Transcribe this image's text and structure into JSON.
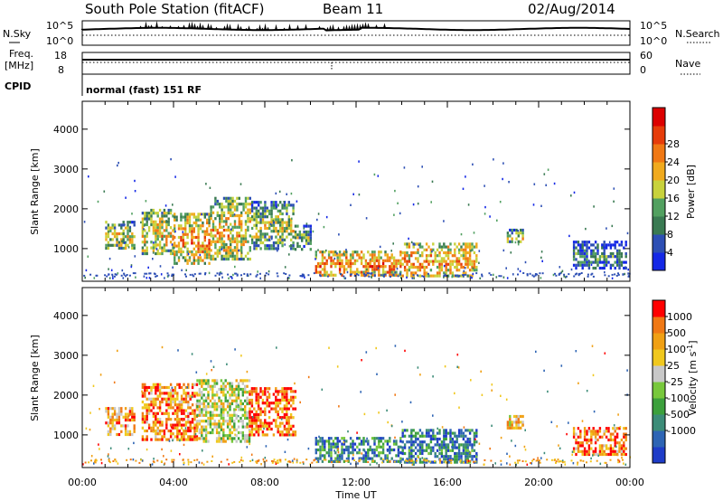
{
  "header": {
    "station": "South Pole Station (fitACF)",
    "beam": "Beam 11",
    "date": "02/Aug/2014"
  },
  "top_panel": {
    "nsky_label": "N.Sky",
    "nsearch_label": "N.Search",
    "noise_tick_hi": "10^5",
    "noise_tick_lo": "10^0",
    "freq_label_1": "Freq.",
    "freq_label_2": "[MHz]",
    "freq_tick_hi": "18",
    "freq_tick_lo": "8",
    "nave_label": "Nave",
    "nave_tick_hi": "60",
    "nave_tick_lo": "0",
    "cpid_label": "CPID",
    "cpid_value": "normal (fast) 151 RF"
  },
  "chart_data": [
    {
      "type": "heatmap",
      "name": "power",
      "xlabel": "Time UT",
      "ylabel": "Slant Range [km]",
      "x_ticks": [
        "00:00",
        "04:00",
        "08:00",
        "12:00",
        "16:00",
        "20:00",
        "00:00"
      ],
      "y_ticks": [
        1000,
        2000,
        3000,
        4000
      ],
      "xlim_hours": [
        0,
        24
      ],
      "ylim_km": [
        180,
        4700
      ],
      "colorbar": {
        "label": "Power [dB]",
        "ticks": [
          "4",
          "8",
          "12",
          "16",
          "20",
          "24",
          "28"
        ],
        "colors": [
          "#1428e6",
          "#2d4fb4",
          "#3a7a52",
          "#52a060",
          "#c8d23c",
          "#f0aa1e",
          "#f07814",
          "#e63c0a",
          "#dc0000"
        ]
      },
      "regions": [
        {
          "t0": 1.0,
          "t1": 2.3,
          "r0": 1000,
          "r1": 1700,
          "level": 0.55
        },
        {
          "t0": 2.6,
          "t1": 4.0,
          "r0": 900,
          "r1": 2000,
          "level": 0.6
        },
        {
          "t0": 4.0,
          "t1": 5.6,
          "r0": 650,
          "r1": 1900,
          "level": 0.7
        },
        {
          "t0": 5.6,
          "t1": 7.4,
          "r0": 750,
          "r1": 2300,
          "level": 0.6
        },
        {
          "t0": 7.4,
          "t1": 9.3,
          "r0": 1000,
          "r1": 2200,
          "level": 0.5
        },
        {
          "t0": 9.3,
          "t1": 10.0,
          "r0": 1000,
          "r1": 1600,
          "level": 0.45
        },
        {
          "t0": 10.2,
          "t1": 14.0,
          "r0": 300,
          "r1": 950,
          "level": 0.75
        },
        {
          "t0": 14.0,
          "t1": 17.3,
          "r0": 300,
          "r1": 1150,
          "level": 0.7
        },
        {
          "t0": 18.6,
          "t1": 19.3,
          "r0": 1150,
          "r1": 1500,
          "level": 0.5
        },
        {
          "t0": 21.5,
          "t1": 23.8,
          "r0": 500,
          "r1": 1200,
          "level": 0.3
        }
      ]
    },
    {
      "type": "heatmap",
      "name": "velocity",
      "xlabel": "Time UT",
      "ylabel": "Slant Range [km]",
      "x_ticks": [
        "00:00",
        "04:00",
        "08:00",
        "12:00",
        "16:00",
        "20:00",
        "00:00"
      ],
      "y_ticks": [
        1000,
        2000,
        3000,
        4000
      ],
      "xlim_hours": [
        0,
        24
      ],
      "ylim_km": [
        180,
        4700
      ],
      "colorbar": {
        "label": "Velocity [m s^-1]",
        "ticks": [
          "1000",
          "500",
          "100",
          "25",
          "-25",
          "-100",
          "-500",
          "-1000"
        ],
        "colors": [
          "#1e3cc8",
          "#2d64b4",
          "#3c8c78",
          "#3ca03c",
          "#78c83c",
          "#c8c8c8",
          "#f0c81e",
          "#f0a014",
          "#f07814",
          "#ff0000"
        ]
      },
      "regions": [
        {
          "t0": 1.0,
          "t1": 2.3,
          "r0": 1000,
          "r1": 1700,
          "level": 0.75
        },
        {
          "t0": 2.6,
          "t1": 5.0,
          "r0": 900,
          "r1": 2300,
          "level": 0.8
        },
        {
          "t0": 5.0,
          "t1": 7.3,
          "r0": 850,
          "r1": 2400,
          "level": 0.55
        },
        {
          "t0": 7.3,
          "t1": 9.3,
          "r0": 1000,
          "r1": 2200,
          "level": 0.85
        },
        {
          "t0": 10.2,
          "t1": 14.0,
          "r0": 300,
          "r1": 950,
          "level": 0.25
        },
        {
          "t0": 14.0,
          "t1": 17.3,
          "r0": 300,
          "r1": 1150,
          "level": 0.2
        },
        {
          "t0": 18.6,
          "t1": 19.3,
          "r0": 1150,
          "r1": 1500,
          "level": 0.7
        },
        {
          "t0": 21.5,
          "t1": 23.8,
          "r0": 500,
          "r1": 1200,
          "level": 0.8
        }
      ]
    }
  ]
}
